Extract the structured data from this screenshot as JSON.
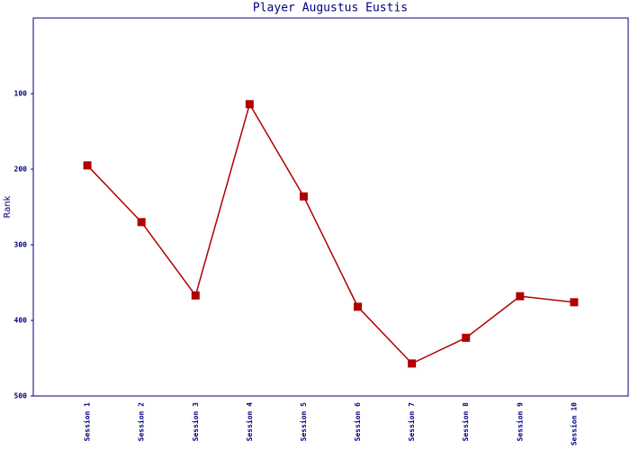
{
  "chart_data": {
    "type": "line",
    "title": "Player Augustus Eustis",
    "y_label": "Rank",
    "categories": [
      "Session 1",
      "Session 2",
      "Session 3",
      "Session 4",
      "Session 5",
      "Session 6",
      "Session 7",
      "Session 8",
      "Session 9",
      "Session 10"
    ],
    "series": [
      {
        "name": "Rank",
        "color": "#b00000",
        "values": [
          195,
          270,
          367,
          114,
          236,
          382,
          457,
          423,
          368,
          376
        ]
      }
    ],
    "ylim": [
      500,
      0
    ],
    "yticks": [
      100,
      200,
      300,
      400,
      500
    ],
    "grid": false
  }
}
